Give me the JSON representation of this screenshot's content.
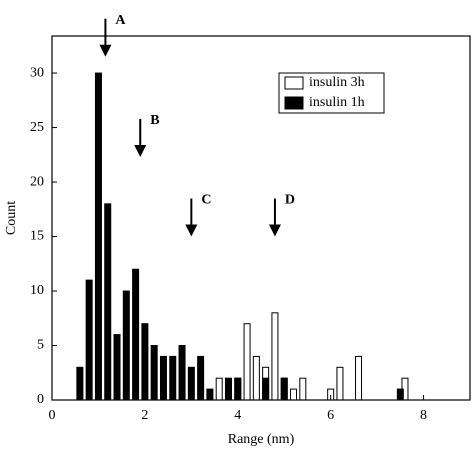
{
  "chart_data": {
    "type": "bar",
    "x_label": "Range (nm)",
    "y_label": "Count",
    "series": [
      {
        "name": "insulin 3h",
        "color": "#ffffff",
        "x": [
          3.6,
          3.8,
          4.0,
          4.2,
          4.4,
          4.6,
          4.8,
          5.0,
          5.2,
          5.4,
          6.0,
          6.2,
          6.6,
          7.6
        ],
        "values": [
          2,
          1,
          2,
          7,
          4,
          3,
          8,
          2,
          1,
          2,
          1,
          3,
          4,
          2
        ]
      },
      {
        "name": "insulin 1h",
        "color": "#000000",
        "x": [
          0.6,
          0.8,
          1.0,
          1.2,
          1.4,
          1.6,
          1.8,
          2.0,
          2.2,
          2.4,
          2.6,
          2.8,
          3.0,
          3.2,
          3.4,
          3.8,
          4.0,
          4.6,
          5.0,
          7.5
        ],
        "values": [
          3,
          11,
          30,
          18,
          6,
          10,
          12,
          7,
          5,
          4,
          4,
          5,
          3,
          4,
          1,
          2,
          2,
          2,
          2,
          1
        ]
      }
    ],
    "annotations": [
      {
        "text": "A",
        "x": 1.15,
        "y": 31.5
      },
      {
        "text": "B",
        "x": 1.9,
        "y": 22.3
      },
      {
        "text": "C",
        "x": 3.0,
        "y": 15
      },
      {
        "text": "D",
        "x": 4.8,
        "y": 15
      }
    ],
    "xlim": [
      0,
      9
    ],
    "ylim": [
      0,
      33.4
    ],
    "xticks": [
      0,
      2,
      4,
      6,
      8
    ],
    "yticks": [
      0,
      5,
      10,
      15,
      20,
      25,
      30
    ],
    "legend": "top-right"
  }
}
